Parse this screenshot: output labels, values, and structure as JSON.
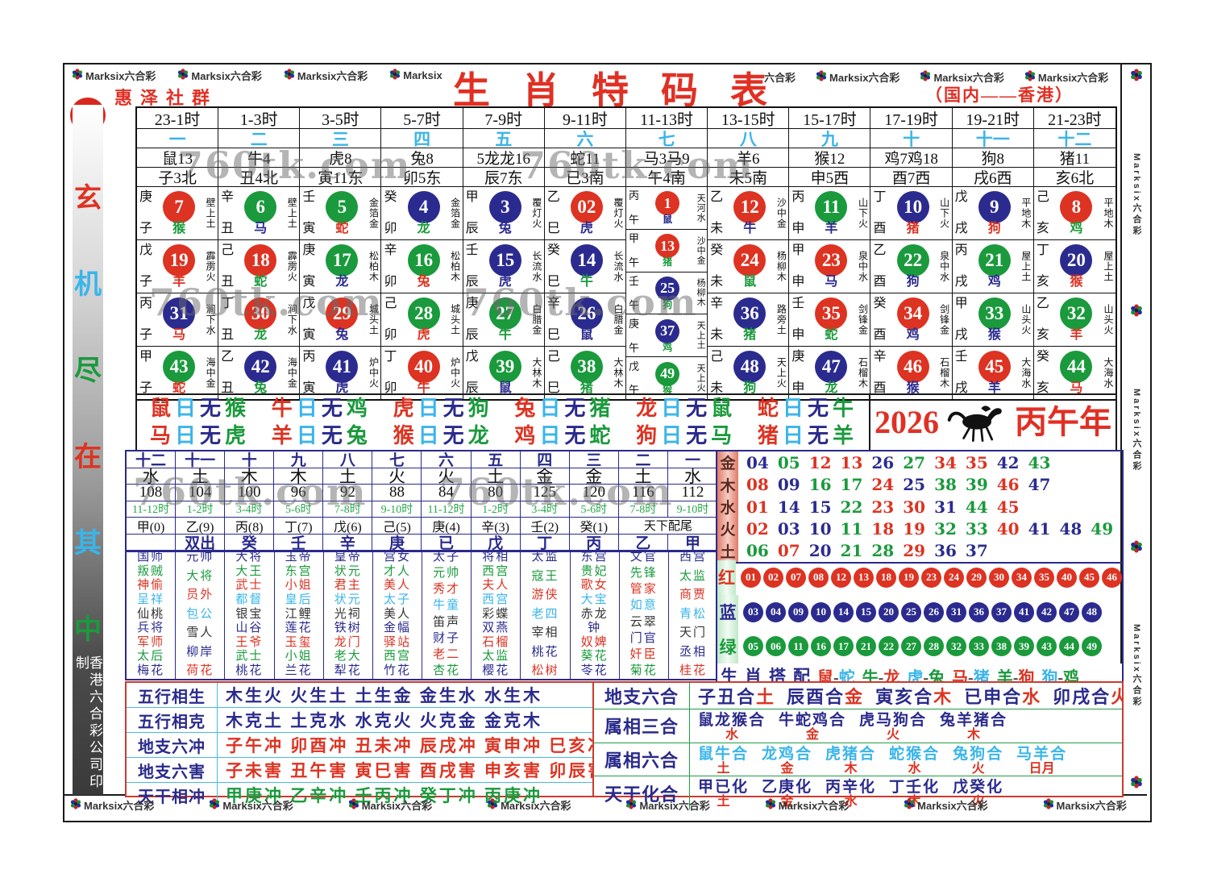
{
  "badge": "6A",
  "brand": {
    "logo_label": "Marksix六合彩",
    "logo_short": "Marksix",
    "top_left": [
      "Marksix六合彩",
      "Marksix六合彩",
      "Marksix六合彩",
      "Marksix"
    ],
    "top_right_plain": "六合彩",
    "top_right": [
      "Marksix六合彩",
      "Marksix六合彩",
      "Marksix六合彩"
    ],
    "bottom": [
      "Marksix六合彩",
      "Marksix六合彩",
      "Marksix六合彩",
      "Marksix六合彩",
      "Marksix六合彩",
      "Marksix六合彩",
      "Marksix六合彩",
      "Marksix六合彩"
    ],
    "right_side": [
      "Marksix六合彩",
      "Marksix六合彩",
      "Marksix六合彩"
    ]
  },
  "header": {
    "title": "生肖特码表",
    "society": "惠泽社群",
    "region": "（国内——香港）"
  },
  "sidebar": {
    "chars": [
      {
        "t": "玄",
        "c": "r"
      },
      {
        "t": "机",
        "c": "c"
      },
      {
        "t": "尽",
        "c": "g"
      },
      {
        "t": "在",
        "c": "r"
      },
      {
        "t": "其",
        "c": "c"
      },
      {
        "t": "中",
        "c": "g"
      }
    ],
    "footer": "香港六合彩公司印制"
  },
  "watermark": "760tk.com",
  "top_table": {
    "times": [
      "23-1时",
      "1-3时",
      "3-5时",
      "5-7时",
      "7-9时",
      "9-11时",
      "11-13时",
      "13-15时",
      "15-17时",
      "17-19时",
      "19-21时",
      "21-23时"
    ],
    "ordinals": [
      "一",
      "二",
      "三",
      "四",
      "五",
      "六",
      "七",
      "八",
      "九",
      "十",
      "十一",
      "十二"
    ],
    "zodiac_counts": [
      "鼠13",
      "牛4",
      "虎8",
      "兔8",
      "5龙龙16",
      "蛇11",
      "马3马9",
      "羊6",
      "猴12",
      "鸡7鸡18",
      "狗8",
      "猪11"
    ],
    "branches": [
      "子3北",
      "丑4北",
      "寅11东",
      "卯5东",
      "辰7东",
      "已3南",
      "午4南",
      "未5南",
      "申5西",
      "酉7西",
      "戌6西",
      "亥6北"
    ]
  },
  "grid": {
    "columns": [
      [
        [
          "庚子",
          "7",
          "壁上土",
          "猴",
          "g"
        ],
        [
          "戊子",
          "19",
          "霹雳火",
          "羊",
          "r"
        ],
        [
          "丙子",
          "31",
          "涧下水",
          "马",
          "r"
        ],
        [
          "甲子",
          "43",
          "海中金",
          "蛇",
          "r"
        ]
      ],
      [
        [
          "辛丑",
          "6",
          "壁上土",
          "马",
          "b"
        ],
        [
          "己丑",
          "18",
          "霹雳火",
          "蛇",
          "g"
        ],
        [
          "丁丑",
          "30",
          "涧下水",
          "龙",
          "g"
        ],
        [
          "乙丑",
          "42",
          "海中金",
          "兔",
          "g"
        ]
      ],
      [
        [
          "壬寅",
          "5",
          "金箔金",
          "蛇",
          "r"
        ],
        [
          "庚寅",
          "17",
          "松柏木",
          "龙",
          "b"
        ],
        [
          "戊寅",
          "29",
          "城头土",
          "兔",
          "b"
        ],
        [
          "丙寅",
          "41",
          "炉中火",
          "虎",
          "b"
        ]
      ],
      [
        [
          "癸卯",
          "4",
          "金箔金",
          "龙",
          "g"
        ],
        [
          "辛卯",
          "16",
          "松柏木",
          "兔",
          "r"
        ],
        [
          "己卯",
          "28",
          "城头土",
          "虎",
          "r"
        ],
        [
          "丁卯",
          "40",
          "炉中火",
          "牛",
          "r"
        ]
      ],
      [
        [
          "甲辰",
          "3",
          "覆灯火",
          "兔",
          "b"
        ],
        [
          "壬辰",
          "15",
          "长流水",
          "虎",
          "b"
        ],
        [
          "庚辰",
          "27",
          "白腊金",
          "牛",
          "g"
        ],
        [
          "戊辰",
          "39",
          "大林木",
          "鼠",
          "b"
        ]
      ],
      [
        [
          "乙巳",
          "02",
          "覆灯火",
          "虎",
          "b"
        ],
        [
          "癸巳",
          "14",
          "长流水",
          "牛",
          "g"
        ],
        [
          "辛巳",
          "26",
          "白腊金",
          "鼠",
          "b"
        ],
        [
          "己巳",
          "38",
          "大林木",
          "猪",
          "g"
        ]
      ],
      [
        [
          "丙午",
          "1",
          "天河水",
          "鼠",
          "b"
        ],
        [
          "甲午",
          "13",
          "沙中金",
          "猪",
          "g"
        ],
        [
          "壬午",
          "25",
          "杨柳木",
          "狗",
          "g"
        ],
        [
          "庚午",
          "37",
          "天上土",
          "鸡",
          "g"
        ],
        [
          "戊午",
          "49",
          "天上火",
          "猴",
          "g"
        ]
      ],
      [
        [
          "乙未",
          "12",
          "沙中金",
          "牛",
          "b"
        ],
        [
          "癸未",
          "24",
          "杨柳木",
          "鼠",
          "g"
        ],
        [
          "辛未",
          "36",
          "路旁土",
          "猪",
          "g"
        ],
        [
          "己未",
          "48",
          "天上火",
          "狗",
          "g"
        ]
      ],
      [
        [
          "丙申",
          "11",
          "山下火",
          "羊",
          "b"
        ],
        [
          "甲申",
          "23",
          "泉中水",
          "马",
          "b"
        ],
        [
          "壬申",
          "35",
          "剑锋金",
          "蛇",
          "g"
        ],
        [
          "庚申",
          "47",
          "石榴木",
          "龙",
          "g"
        ]
      ],
      [
        [
          "丁酉",
          "10",
          "山下火",
          "猪",
          "r"
        ],
        [
          "乙酉",
          "22",
          "泉中水",
          "狗",
          "b"
        ],
        [
          "癸酉",
          "34",
          "剑锋金",
          "鸡",
          "b"
        ],
        [
          "辛酉",
          "46",
          "石榴木",
          "猴",
          "b"
        ]
      ],
      [
        [
          "戊戌",
          "9",
          "平地木",
          "狗",
          "r"
        ],
        [
          "丙戌",
          "21",
          "屋上土",
          "鸡",
          "b"
        ],
        [
          "甲戌",
          "33",
          "山头火",
          "猴",
          "b"
        ],
        [
          "壬戌",
          "45",
          "大海水",
          "羊",
          "b"
        ]
      ],
      [
        [
          "己亥",
          "8",
          "平地木",
          "鸡",
          "g"
        ],
        [
          "丁亥",
          "20",
          "屋上土",
          "猴",
          "r"
        ],
        [
          "乙亥",
          "32",
          "山头火",
          "羊",
          "r"
        ],
        [
          "癸亥",
          "44",
          "大海水",
          "马",
          "r"
        ]
      ]
    ]
  },
  "no_lines": {
    "line1": [
      "鼠日无猴",
      "牛日无鸡",
      "虎日无狗",
      "兔日无猪",
      "龙日无鼠",
      "蛇日无牛"
    ],
    "line2": [
      "马日无虎",
      "羊日无兔",
      "猴日无龙",
      "鸡日无蛇",
      "狗日无马",
      "猪日无羊"
    ]
  },
  "year": {
    "num": "2026",
    "name": "丙午年"
  },
  "mid_table": {
    "row_ordinals": [
      "十二",
      "十一",
      "十",
      "九",
      "八",
      "七",
      "六",
      "五",
      "四",
      "三",
      "二",
      "一"
    ],
    "row_elements": [
      "水",
      "土",
      "木",
      "木",
      "土",
      "火",
      "火",
      "土",
      "金",
      "金",
      "土",
      "水"
    ],
    "row_numbers": [
      "108",
      "104",
      "100",
      "96",
      "92",
      "88",
      "84",
      "80",
      "125",
      "120",
      "116",
      "112"
    ],
    "row_times": [
      "11-12时",
      "1-2时",
      "3-4时",
      "5-6时",
      "7-8时",
      "9-10时",
      "11-12时",
      "1-2时",
      "3-4时",
      "5-6时",
      "7-8时",
      "9-10时"
    ],
    "row_stems": [
      "甲(0)",
      "乙(9)",
      "丙(8)",
      "丁(7)",
      "戊(6)",
      "己(5)",
      "庚(4)",
      "辛(3)",
      "壬(2)",
      "癸(1)"
    ],
    "row_stems_span": "天下配尾",
    "row_last": [
      "",
      "双出",
      "癸",
      "壬",
      "辛",
      "庚",
      "已",
      "戊",
      "丁",
      "丙",
      "乙",
      "甲"
    ]
  },
  "names": {
    "columns": [
      [
        "国师",
        "叛贼",
        "神偷",
        "呈祥",
        "仙桃",
        "兵将",
        "军师",
        "太后",
        "梅花"
      ],
      [
        "元帅",
        "大将",
        "员外",
        "包公",
        "雪人",
        "柳岸",
        "荷花"
      ],
      [
        "大将",
        "大王",
        "武士",
        "都督",
        "银宝",
        "山谷",
        "王爷",
        "武士",
        "桃花"
      ],
      [
        "玉帝",
        "东宫",
        "小姐",
        "皇后",
        "江鲤",
        "莲花",
        "玉玺",
        "小姐",
        "兰花"
      ],
      [
        "皇帝",
        "状元",
        "君主",
        "状元",
        "光祠",
        "铁树",
        "龙门",
        "老大",
        "犁花"
      ],
      [
        "宫女",
        "才人",
        "美人",
        "太子",
        "美人",
        "金幅",
        "驿站",
        "西宫",
        "竹花"
      ],
      [
        "太子",
        "元帅",
        "秀才",
        "牛童",
        "笛声",
        "财子",
        "老二",
        "杏花"
      ],
      [
        "将相",
        "西宫",
        "夫人",
        "西宫",
        "彩蝶",
        "双燕",
        "石榴",
        "太监",
        "樱花"
      ],
      [
        "太监",
        "寇王",
        "游侠",
        "老四",
        "宰相",
        "桃花",
        "松树"
      ],
      [
        "东宫",
        "贵妃",
        "歌女",
        "大宝",
        "赤龙",
        "钟",
        "奴婢",
        "葵花",
        "苓花"
      ],
      [
        "文官",
        "先锋",
        "管家",
        "如意",
        "云翠",
        "门官",
        "奸臣",
        "菊花"
      ],
      [
        "西宫",
        "太监",
        "商贾",
        "青松",
        "天门",
        "丞相",
        "桂花"
      ]
    ]
  },
  "elements": {
    "rows": [
      {
        "label": "金",
        "nums": [
          "04",
          "05",
          "12",
          "13",
          "26",
          "27",
          "34",
          "35",
          "42",
          "43"
        ]
      },
      {
        "label": "木",
        "nums": [
          "08",
          "09",
          "16",
          "17",
          "24",
          "25",
          "38",
          "39",
          "46",
          "47"
        ]
      },
      {
        "label": "水",
        "nums": [
          "01",
          "14",
          "15",
          "22",
          "23",
          "30",
          "31",
          "44",
          "45"
        ]
      },
      {
        "label": "火",
        "nums": [
          "02",
          "03",
          "10",
          "11",
          "18",
          "19",
          "32",
          "33",
          "40",
          "41",
          "48",
          "49"
        ]
      },
      {
        "label": "土",
        "nums": [
          "06",
          "07",
          "20",
          "21",
          "28",
          "29",
          "36",
          "37"
        ]
      }
    ]
  },
  "ball_rows": [
    {
      "label": "红",
      "color": "#dd3322",
      "nums": [
        "01",
        "02",
        "07",
        "08",
        "12",
        "13",
        "18",
        "19",
        "23",
        "24",
        "29",
        "30",
        "34",
        "35",
        "40",
        "45",
        "46"
      ]
    },
    {
      "label": "蓝",
      "color": "#2b2b8f",
      "nums": [
        "03",
        "04",
        "09",
        "10",
        "14",
        "15",
        "20",
        "25",
        "26",
        "31",
        "36",
        "37",
        "41",
        "42",
        "47",
        "48"
      ]
    },
    {
      "label": "绿",
      "color": "#1a9a3c",
      "nums": [
        "05",
        "06",
        "11",
        "16",
        "17",
        "21",
        "22",
        "27",
        "28",
        "32",
        "33",
        "38",
        "39",
        "43",
        "44",
        "49"
      ]
    }
  ],
  "pairs": {
    "label": "生肖搭配",
    "items": [
      {
        "a": "鼠",
        "b": "蛇",
        "ca": "r",
        "cb": "c"
      },
      {
        "a": "牛",
        "b": "龙",
        "ca": "g",
        "cb": "r"
      },
      {
        "a": "虎",
        "b": "兔",
        "ca": "c",
        "cb": "g"
      },
      {
        "a": "马",
        "b": "猪",
        "ca": "r",
        "cb": "c"
      },
      {
        "a": "羊",
        "b": "狗",
        "ca": "g",
        "cb": "r"
      },
      {
        "a": "狗",
        "b": "鸡",
        "ca": "c",
        "cb": "g"
      }
    ]
  },
  "bottom_left": {
    "rows": [
      {
        "label": "五行相生",
        "text": "木生火  火生土  土生金  金生水  水生木",
        "color": "n"
      },
      {
        "label": "五行相克",
        "text": "木克土  土克水  水克火  火克金  金克木",
        "color": "n"
      },
      {
        "label": "地支六冲",
        "text": "子午冲  卯酉冲  丑未冲  辰戌冲  寅申冲 巳亥冲",
        "color": "r"
      },
      {
        "label": "地支六害",
        "text": "子未害  丑午害  寅巳害  酉戌害  申亥害 卯辰害",
        "color": "r"
      },
      {
        "label": "天干相冲",
        "text": "甲庚冲  乙辛冲  壬丙冲  癸丁冲  丙庚冲",
        "color": "g"
      }
    ]
  },
  "bottom_right": {
    "rows": [
      {
        "label": "地支六合",
        "type": "inline",
        "mc": "n",
        "segs": [
          [
            "子丑合",
            "土"
          ],
          [
            "辰酉合",
            "金"
          ],
          [
            "寅亥合",
            "木"
          ],
          [
            "已申合",
            "水"
          ],
          [
            "卯戌合",
            "火"
          ]
        ]
      },
      {
        "label": "属相三合",
        "type": "stack",
        "mc": "n",
        "segs": [
          [
            "鼠龙猴合",
            "水"
          ],
          [
            "牛蛇鸡合",
            "金"
          ],
          [
            "虎马狗合",
            "火"
          ],
          [
            "兔羊猪合",
            "木"
          ]
        ]
      },
      {
        "label": "属相六合",
        "type": "stack",
        "mc": "c",
        "segs": [
          [
            "鼠牛合",
            "土"
          ],
          [
            "龙鸡合",
            "金"
          ],
          [
            "虎猪合",
            "木"
          ],
          [
            "蛇猴合",
            "水"
          ],
          [
            "兔狗合",
            "火"
          ],
          [
            "马羊合",
            "日月"
          ]
        ]
      },
      {
        "label": "天干化合",
        "type": "stack",
        "mc": "n",
        "segs": [
          [
            "甲已化",
            "土"
          ],
          [
            "乙庚化",
            "金"
          ],
          [
            "丙辛化",
            "水"
          ],
          [
            "丁壬化",
            "木"
          ],
          [
            "戊癸化",
            "火"
          ]
        ]
      }
    ]
  }
}
